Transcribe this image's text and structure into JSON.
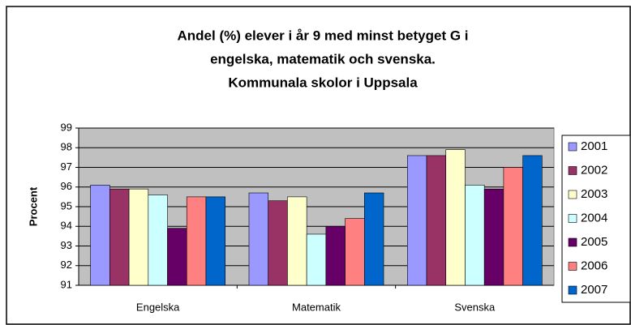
{
  "chart_data": {
    "type": "bar",
    "title": [
      "Andel (%) elever i år 9 med minst betyget G i",
      "engelska, matematik och svenska.",
      "Kommunala skolor i Uppsala"
    ],
    "ylabel": "Procent",
    "categories": [
      "Engelska",
      "Matematik",
      "Svenska"
    ],
    "series": [
      {
        "name": "2001",
        "color": "#9999ff",
        "values": [
          96.1,
          95.7,
          97.6
        ]
      },
      {
        "name": "2002",
        "color": "#993366",
        "values": [
          95.9,
          95.3,
          97.6
        ]
      },
      {
        "name": "2003",
        "color": "#ffffcc",
        "values": [
          95.9,
          95.5,
          97.9
        ]
      },
      {
        "name": "2004",
        "color": "#ccffff",
        "values": [
          95.6,
          93.6,
          96.1
        ]
      },
      {
        "name": "2005",
        "color": "#660066",
        "values": [
          93.9,
          94.0,
          95.9
        ]
      },
      {
        "name": "2006",
        "color": "#ff8080",
        "values": [
          95.5,
          94.4,
          97.0
        ]
      },
      {
        "name": "2007",
        "color": "#0066cc",
        "values": [
          95.5,
          95.7,
          97.6
        ]
      }
    ],
    "ylim": [
      91,
      99
    ],
    "yticks": [
      91,
      92,
      93,
      94,
      95,
      96,
      97,
      98,
      99
    ],
    "grid": true,
    "legend": "right"
  }
}
